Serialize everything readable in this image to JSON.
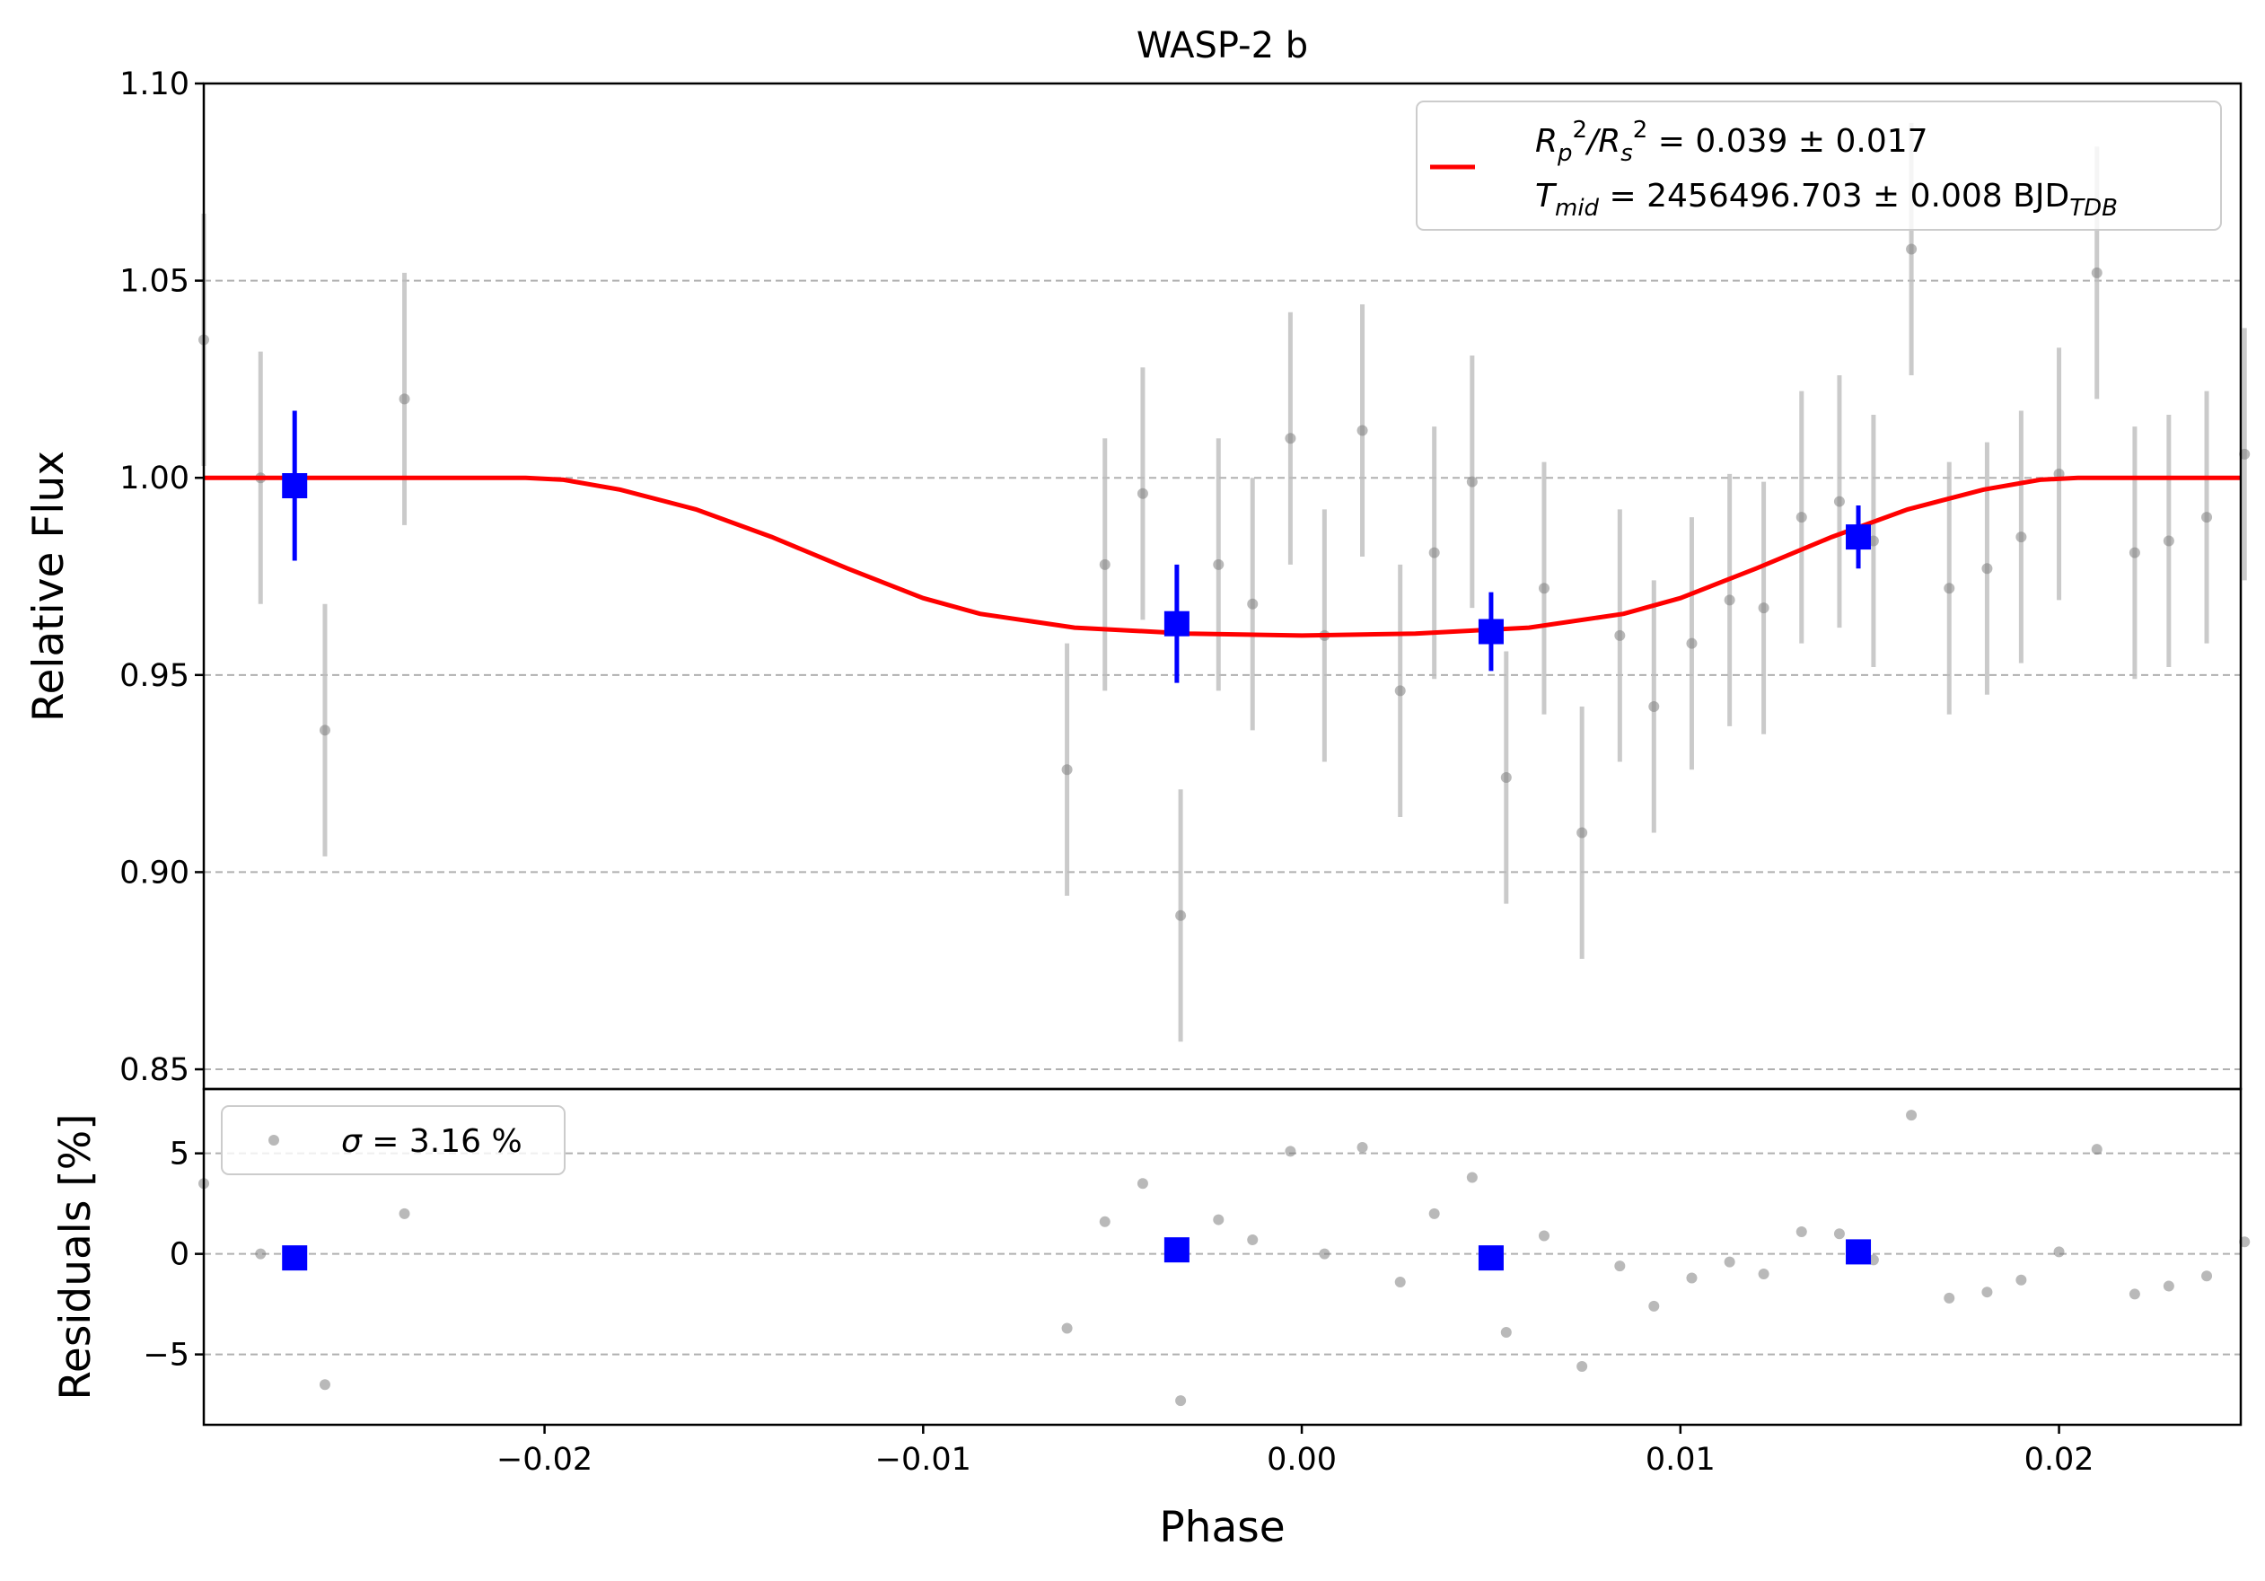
{
  "chart_data": [
    {
      "type": "scatter",
      "title": "WASP-2 b",
      "xlabel": "",
      "ylabel": "Relative Flux",
      "xlim": [
        -0.029,
        0.0248
      ],
      "ylim": [
        0.845,
        1.1
      ],
      "yticks": [
        "0.85",
        "0.90",
        "0.95",
        "1.00",
        "1.05",
        "1.10"
      ],
      "grid": "horizontal dashed",
      "legend": {
        "placement": "top-right",
        "line1": {
          "R": "R",
          "p": "p",
          "two": "2",
          "slash": "/R",
          "s": "s",
          "two2": "2",
          "rest": " = 0.039 ± 0.017"
        },
        "line2": {
          "T": "T",
          "mid": "mid",
          "rest": " = 2456496.703 ± 0.008 BJD",
          "tdb": "TDB"
        }
      },
      "colors": {
        "model": "#ff0000",
        "binned": "#0000ff",
        "data": "#808080",
        "errbar": "#bdbdbd"
      },
      "series": [
        {
          "kind": "data",
          "x": [
            -0.029,
            -0.0275,
            -0.0258,
            -0.0237,
            -0.0062,
            -0.0052,
            -0.0042,
            -0.0032,
            -0.0022,
            -0.0013,
            -0.0003,
            0.0006,
            0.0016,
            0.0026,
            0.0035,
            0.0045,
            0.0054,
            0.0064,
            0.0074,
            0.0084,
            0.0093,
            0.0103,
            0.0113,
            0.0122,
            0.0132,
            0.0142,
            0.0151,
            0.0161,
            0.0171,
            0.0181,
            0.019,
            0.02,
            0.021,
            0.022,
            0.0229,
            0.0239,
            0.0249
          ],
          "y": [
            1.035,
            1.0,
            0.936,
            1.02,
            0.926,
            0.978,
            0.996,
            0.889,
            0.978,
            0.968,
            1.01,
            0.96,
            1.012,
            0.946,
            0.981,
            0.999,
            0.924,
            0.972,
            0.91,
            0.96,
            0.942,
            0.958,
            0.969,
            0.967,
            0.99,
            0.994,
            0.984,
            1.058,
            0.972,
            0.977,
            0.985,
            1.001,
            1.052,
            0.981,
            0.984,
            0.99,
            1.006
          ],
          "yerr": [
            0.032,
            0.032,
            0.032,
            0.032,
            0.032,
            0.032,
            0.032,
            0.032,
            0.032,
            0.032,
            0.032,
            0.032,
            0.032,
            0.032,
            0.032,
            0.032,
            0.032,
            0.032,
            0.032,
            0.032,
            0.032,
            0.032,
            0.032,
            0.032,
            0.032,
            0.032,
            0.032,
            0.032,
            0.032,
            0.032,
            0.032,
            0.032,
            0.032,
            0.032,
            0.032,
            0.032,
            0.032
          ]
        },
        {
          "kind": "binned",
          "x": [
            -0.0266,
            -0.0033,
            0.005,
            0.0147
          ],
          "y": [
            0.998,
            0.963,
            0.961,
            0.985
          ],
          "yerr": [
            0.019,
            0.015,
            0.01,
            0.008
          ]
        },
        {
          "kind": "model",
          "x": [
            -0.029,
            -0.0205,
            -0.0195,
            -0.018,
            -0.016,
            -0.014,
            -0.012,
            -0.01,
            -0.0085,
            -0.006,
            -0.003,
            0.0,
            0.003,
            0.006,
            0.0085,
            0.01,
            0.012,
            0.014,
            0.016,
            0.018,
            0.0195,
            0.0205,
            0.0248
          ],
          "y": [
            1.0,
            1.0,
            0.9995,
            0.997,
            0.992,
            0.985,
            0.977,
            0.9695,
            0.9655,
            0.962,
            0.9605,
            0.96,
            0.9605,
            0.962,
            0.9655,
            0.9695,
            0.977,
            0.985,
            0.992,
            0.997,
            0.9995,
            1.0,
            1.0
          ]
        }
      ]
    },
    {
      "type": "scatter",
      "xlabel": "Phase",
      "ylabel": "Residuals [%]",
      "xlim": [
        -0.029,
        0.0248
      ],
      "ylim": [
        -8.5,
        8.2
      ],
      "xticks": [
        -0.02,
        -0.01,
        0.0,
        0.01,
        0.02
      ],
      "xtick_labels": [
        "−0.02",
        "−0.01",
        "0.00",
        "0.01",
        "0.02"
      ],
      "yticks": [
        -5,
        0,
        5
      ],
      "ytick_labels": [
        "−5",
        "0",
        "5"
      ],
      "grid": "horizontal dashed",
      "legend": {
        "placement": "top-left",
        "sigma": "σ",
        "rest": " = 3.16 %"
      },
      "series": [
        {
          "kind": "data",
          "x": [
            -0.029,
            -0.0275,
            -0.0258,
            -0.0237,
            -0.0062,
            -0.0052,
            -0.0042,
            -0.0032,
            -0.0022,
            -0.0013,
            -0.0003,
            0.0006,
            0.0016,
            0.0026,
            0.0035,
            0.0045,
            0.0054,
            0.0064,
            0.0074,
            0.0084,
            0.0093,
            0.0103,
            0.0113,
            0.0122,
            0.0132,
            0.0142,
            0.0151,
            0.0161,
            0.0171,
            0.0181,
            0.019,
            0.02,
            0.021,
            0.022,
            0.0229,
            0.0239,
            0.0249
          ],
          "y": [
            3.5,
            0.0,
            -6.5,
            2.0,
            -3.7,
            1.6,
            3.5,
            -7.3,
            1.7,
            0.7,
            5.1,
            0.0,
            5.3,
            -1.4,
            2.0,
            3.8,
            -3.9,
            0.9,
            -5.6,
            -0.6,
            -2.6,
            -1.2,
            -0.4,
            -1.0,
            1.1,
            1.0,
            -0.3,
            6.9,
            -2.2,
            -1.9,
            -1.3,
            0.1,
            5.2,
            -2.0,
            -1.6,
            -1.1,
            0.6
          ]
        },
        {
          "kind": "binned",
          "x": [
            -0.0266,
            -0.0033,
            0.005,
            0.0147
          ],
          "y": [
            -0.2,
            0.2,
            -0.2,
            0.1
          ]
        }
      ]
    }
  ]
}
